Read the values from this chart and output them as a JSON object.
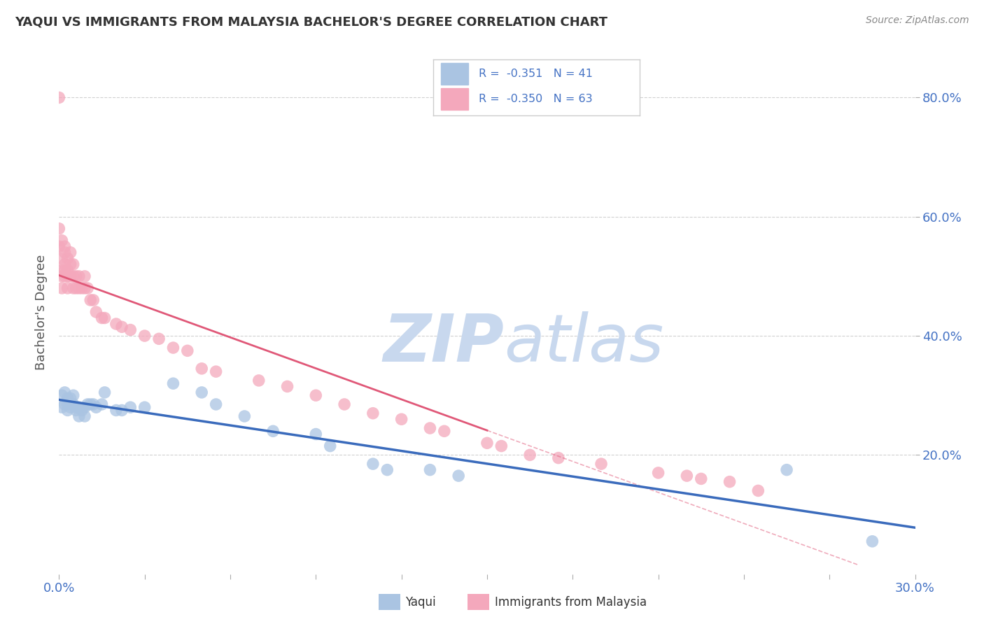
{
  "title": "YAQUI VS IMMIGRANTS FROM MALAYSIA BACHELOR'S DEGREE CORRELATION CHART",
  "source": "Source: ZipAtlas.com",
  "ylabel": "Bachelor's Degree",
  "yaxis_ticks": [
    "20.0%",
    "40.0%",
    "60.0%",
    "80.0%"
  ],
  "yaxis_values": [
    0.2,
    0.4,
    0.6,
    0.8
  ],
  "xlim": [
    0.0,
    0.3
  ],
  "ylim": [
    0.0,
    0.88
  ],
  "legend": {
    "yaqui_R": "-0.351",
    "yaqui_N": "41",
    "malaysia_R": "-0.350",
    "malaysia_N": "63"
  },
  "yaqui_color": "#aac4e2",
  "malaysia_color": "#f4a8bc",
  "yaqui_line_color": "#3a6bbc",
  "malaysia_line_color": "#e05878",
  "watermark_zip": "ZIP",
  "watermark_atlas": "atlas",
  "background_color": "#ffffff",
  "yaqui_x": [
    0.001,
    0.001,
    0.002,
    0.002,
    0.003,
    0.003,
    0.003,
    0.004,
    0.004,
    0.005,
    0.005,
    0.006,
    0.006,
    0.007,
    0.007,
    0.008,
    0.009,
    0.009,
    0.01,
    0.011,
    0.012,
    0.013,
    0.015,
    0.016,
    0.02,
    0.022,
    0.025,
    0.03,
    0.04,
    0.05,
    0.055,
    0.065,
    0.075,
    0.09,
    0.095,
    0.11,
    0.115,
    0.13,
    0.14,
    0.255,
    0.285
  ],
  "yaqui_y": [
    0.3,
    0.28,
    0.305,
    0.285,
    0.295,
    0.285,
    0.275,
    0.295,
    0.28,
    0.3,
    0.285,
    0.28,
    0.275,
    0.28,
    0.265,
    0.275,
    0.28,
    0.265,
    0.285,
    0.285,
    0.285,
    0.28,
    0.285,
    0.305,
    0.275,
    0.275,
    0.28,
    0.28,
    0.32,
    0.305,
    0.285,
    0.265,
    0.24,
    0.235,
    0.215,
    0.185,
    0.175,
    0.175,
    0.165,
    0.175,
    0.055
  ],
  "malaysia_x": [
    0.0,
    0.0,
    0.0,
    0.001,
    0.001,
    0.001,
    0.001,
    0.001,
    0.002,
    0.002,
    0.002,
    0.002,
    0.002,
    0.003,
    0.003,
    0.003,
    0.003,
    0.004,
    0.004,
    0.004,
    0.005,
    0.005,
    0.005,
    0.006,
    0.006,
    0.007,
    0.007,
    0.008,
    0.009,
    0.009,
    0.01,
    0.011,
    0.012,
    0.013,
    0.015,
    0.016,
    0.02,
    0.022,
    0.025,
    0.03,
    0.035,
    0.04,
    0.045,
    0.05,
    0.055,
    0.07,
    0.08,
    0.09,
    0.1,
    0.11,
    0.12,
    0.13,
    0.135,
    0.15,
    0.155,
    0.165,
    0.175,
    0.19,
    0.21,
    0.22,
    0.225,
    0.235,
    0.245
  ],
  "malaysia_y": [
    0.8,
    0.58,
    0.55,
    0.56,
    0.53,
    0.51,
    0.5,
    0.48,
    0.55,
    0.54,
    0.52,
    0.51,
    0.5,
    0.53,
    0.51,
    0.5,
    0.48,
    0.54,
    0.52,
    0.5,
    0.52,
    0.5,
    0.48,
    0.5,
    0.48,
    0.5,
    0.48,
    0.48,
    0.5,
    0.48,
    0.48,
    0.46,
    0.46,
    0.44,
    0.43,
    0.43,
    0.42,
    0.415,
    0.41,
    0.4,
    0.395,
    0.38,
    0.375,
    0.345,
    0.34,
    0.325,
    0.315,
    0.3,
    0.285,
    0.27,
    0.26,
    0.245,
    0.24,
    0.22,
    0.215,
    0.2,
    0.195,
    0.185,
    0.17,
    0.165,
    0.16,
    0.155,
    0.14
  ],
  "grid_color": "#cccccc",
  "tick_color": "#4472c4",
  "legend_border_color": "#cccccc"
}
